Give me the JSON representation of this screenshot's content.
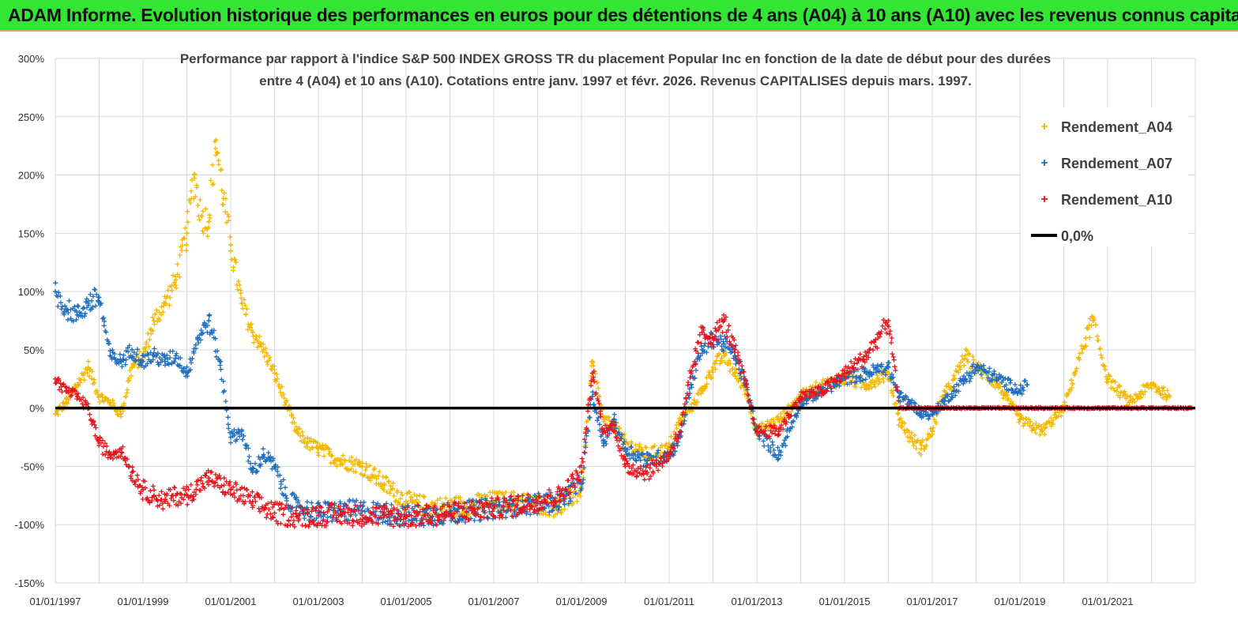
{
  "header": {
    "title": "ADAM Informe. Evolution historique des performances en euros pour des détentions de 4 ans (A04) à 10 ans (A10) avec les revenus connus capitalisés"
  },
  "chart_data": {
    "type": "scatter",
    "title_lines": [
      "Performance par rapport à l'indice S&P 500 INDEX GROSS TR  du placement Popular Inc en fonction de la date de début pour des durées",
      "entre 4 (A04) et 10 ans (A10).  Cotations entre janv. 1997 et févr. 2026. Revenus  CAPITALISES depuis mars. 1997."
    ],
    "xlabel": "",
    "ylabel": "",
    "x_range": [
      "01/01/1997",
      "31/12/2022"
    ],
    "ylim": [
      -150,
      300
    ],
    "y_ticks": [
      {
        "value": 300,
        "label": "300%"
      },
      {
        "value": 250,
        "label": "250%"
      },
      {
        "value": 200,
        "label": "200%"
      },
      {
        "value": 150,
        "label": "150%"
      },
      {
        "value": 100,
        "label": "100%"
      },
      {
        "value": 50,
        "label": "50%"
      },
      {
        "value": 0,
        "label": "0%"
      },
      {
        "value": -50,
        "label": "-50%"
      },
      {
        "value": -100,
        "label": "-100%"
      },
      {
        "value": -150,
        "label": "-150%"
      }
    ],
    "x_ticks": [
      {
        "year": 1997,
        "label": "01/01/1997"
      },
      {
        "year": 1999,
        "label": "01/01/1999"
      },
      {
        "year": 2001,
        "label": "01/01/2001"
      },
      {
        "year": 2003,
        "label": "01/01/2003"
      },
      {
        "year": 2005,
        "label": "01/01/2005"
      },
      {
        "year": 2007,
        "label": "01/01/2007"
      },
      {
        "year": 2009,
        "label": "01/01/2009"
      },
      {
        "year": 2011,
        "label": "01/01/2011"
      },
      {
        "year": 2013,
        "label": "01/01/2013"
      },
      {
        "year": 2015,
        "label": "01/01/2015"
      },
      {
        "year": 2017,
        "label": "01/01/2017"
      },
      {
        "year": 2019,
        "label": "01/01/2019"
      },
      {
        "year": 2021,
        "label": "01/01/2021"
      }
    ],
    "grid": "vertical lines at each year, horizontal lines at each 50%",
    "legend_position": "top-right",
    "legend": [
      {
        "label": "Rendement_A04",
        "marker": "plus",
        "color": "#f5b800"
      },
      {
        "label": "Rendement_A07",
        "marker": "plus",
        "color": "#1f6fc0"
      },
      {
        "label": "Rendement_A10",
        "marker": "plus",
        "color": "#e8141c"
      },
      {
        "label": "0,0%",
        "marker": "line",
        "color": "#000000"
      }
    ],
    "series": [
      {
        "name": "Rendement_A04",
        "color": "#f5b800",
        "points": [
          [
            "1997-01",
            -5
          ],
          [
            "1997-04",
            5
          ],
          [
            "1997-07",
            20
          ],
          [
            "1997-10",
            35
          ],
          [
            "1998-01",
            10
          ],
          [
            "1998-04",
            5
          ],
          [
            "1998-07",
            -5
          ],
          [
            "1998-10",
            35
          ],
          [
            "1999-01",
            45
          ],
          [
            "1999-04",
            75
          ],
          [
            "1999-07",
            90
          ],
          [
            "1999-10",
            110
          ],
          [
            "2000-01",
            150
          ],
          [
            "2000-03",
            200
          ],
          [
            "2000-05",
            165
          ],
          [
            "2000-07",
            160
          ],
          [
            "2000-09",
            230
          ],
          [
            "2000-11",
            180
          ],
          [
            "2001-01",
            140
          ],
          [
            "2001-04",
            90
          ],
          [
            "2001-07",
            65
          ],
          [
            "2001-10",
            50
          ],
          [
            "2002-01",
            30
          ],
          [
            "2002-04",
            5
          ],
          [
            "2002-07",
            -20
          ],
          [
            "2002-10",
            -30
          ],
          [
            "2003-01",
            -35
          ],
          [
            "2003-07",
            -45
          ],
          [
            "2004-01",
            -50
          ],
          [
            "2004-07",
            -65
          ],
          [
            "2005-01",
            -80
          ],
          [
            "2005-07",
            -85
          ],
          [
            "2006-01",
            -85
          ],
          [
            "2006-07",
            -83
          ],
          [
            "2007-01",
            -80
          ],
          [
            "2007-07",
            -80
          ],
          [
            "2008-01",
            -82
          ],
          [
            "2008-07",
            -85
          ],
          [
            "2009-01",
            -70
          ],
          [
            "2009-04",
            40
          ],
          [
            "2009-07",
            -10
          ],
          [
            "2009-10",
            -15
          ],
          [
            "2010-01",
            -30
          ],
          [
            "2010-07",
            -40
          ],
          [
            "2011-01",
            -35
          ],
          [
            "2011-04",
            -10
          ],
          [
            "2011-07",
            0
          ],
          [
            "2011-10",
            15
          ],
          [
            "2012-01",
            35
          ],
          [
            "2012-04",
            45
          ],
          [
            "2012-07",
            30
          ],
          [
            "2012-10",
            15
          ],
          [
            "2013-01",
            -20
          ],
          [
            "2013-07",
            -10
          ],
          [
            "2014-01",
            10
          ],
          [
            "2014-07",
            20
          ],
          [
            "2015-01",
            25
          ],
          [
            "2015-07",
            20
          ],
          [
            "2016-01",
            30
          ],
          [
            "2016-04",
            -10
          ],
          [
            "2016-07",
            -25
          ],
          [
            "2016-10",
            -35
          ],
          [
            "2017-01",
            -20
          ],
          [
            "2017-04",
            10
          ],
          [
            "2017-07",
            25
          ],
          [
            "2017-10",
            45
          ],
          [
            "2018-01",
            35
          ],
          [
            "2018-07",
            20
          ],
          [
            "2019-01",
            -10
          ],
          [
            "2019-07",
            -20
          ],
          [
            "2020-01",
            0
          ],
          [
            "2020-04",
            30
          ],
          [
            "2020-07",
            60
          ],
          [
            "2020-09",
            75
          ],
          [
            "2021-01",
            25
          ],
          [
            "2021-07",
            5
          ],
          [
            "2022-01",
            20
          ],
          [
            "2022-06",
            10
          ]
        ]
      },
      {
        "name": "Rendement_A07",
        "color": "#1f6fc0",
        "points": [
          [
            "1997-01",
            100
          ],
          [
            "1997-04",
            85
          ],
          [
            "1997-07",
            80
          ],
          [
            "1997-10",
            90
          ],
          [
            "1998-01",
            95
          ],
          [
            "1998-04",
            45
          ],
          [
            "1998-07",
            40
          ],
          [
            "1998-10",
            50
          ],
          [
            "1999-01",
            40
          ],
          [
            "1999-04",
            45
          ],
          [
            "1999-07",
            40
          ],
          [
            "1999-10",
            45
          ],
          [
            "2000-01",
            30
          ],
          [
            "2000-04",
            60
          ],
          [
            "2000-07",
            75
          ],
          [
            "2000-10",
            40
          ],
          [
            "2001-01",
            -25
          ],
          [
            "2001-04",
            -20
          ],
          [
            "2001-07",
            -55
          ],
          [
            "2001-10",
            -40
          ],
          [
            "2002-01",
            -50
          ],
          [
            "2002-04",
            -75
          ],
          [
            "2002-07",
            -85
          ],
          [
            "2003-01",
            -90
          ],
          [
            "2003-07",
            -88
          ],
          [
            "2004-01",
            -88
          ],
          [
            "2004-07",
            -90
          ],
          [
            "2005-01",
            -93
          ],
          [
            "2005-07",
            -92
          ],
          [
            "2006-01",
            -90
          ],
          [
            "2006-07",
            -88
          ],
          [
            "2007-01",
            -86
          ],
          [
            "2007-07",
            -84
          ],
          [
            "2008-01",
            -82
          ],
          [
            "2008-07",
            -80
          ],
          [
            "2009-01",
            -65
          ],
          [
            "2009-04",
            10
          ],
          [
            "2009-07",
            -30
          ],
          [
            "2009-10",
            -10
          ],
          [
            "2010-01",
            -35
          ],
          [
            "2010-07",
            -45
          ],
          [
            "2011-01",
            -40
          ],
          [
            "2011-04",
            -25
          ],
          [
            "2011-07",
            20
          ],
          [
            "2011-10",
            50
          ],
          [
            "2012-01",
            60
          ],
          [
            "2012-04",
            55
          ],
          [
            "2012-07",
            45
          ],
          [
            "2012-10",
            20
          ],
          [
            "2013-01",
            -20
          ],
          [
            "2013-07",
            -40
          ],
          [
            "2014-01",
            5
          ],
          [
            "2014-07",
            15
          ],
          [
            "2015-01",
            25
          ],
          [
            "2015-07",
            30
          ],
          [
            "2016-01",
            35
          ],
          [
            "2016-04",
            10
          ],
          [
            "2016-07",
            5
          ],
          [
            "2016-10",
            -5
          ],
          [
            "2017-01",
            -5
          ],
          [
            "2017-07",
            15
          ],
          [
            "2017-10",
            25
          ],
          [
            "2018-01",
            35
          ],
          [
            "2018-07",
            25
          ],
          [
            "2019-01",
            15
          ],
          [
            "2019-03",
            20
          ]
        ]
      },
      {
        "name": "Rendement_A10",
        "color": "#e8141c",
        "points": [
          [
            "1997-01",
            25
          ],
          [
            "1997-04",
            15
          ],
          [
            "1997-07",
            10
          ],
          [
            "1997-10",
            0
          ],
          [
            "1998-01",
            -30
          ],
          [
            "1998-04",
            -40
          ],
          [
            "1998-07",
            -35
          ],
          [
            "1998-10",
            -55
          ],
          [
            "1999-01",
            -70
          ],
          [
            "1999-04",
            -75
          ],
          [
            "1999-07",
            -80
          ],
          [
            "1999-10",
            -75
          ],
          [
            "2000-01",
            -75
          ],
          [
            "2000-07",
            -60
          ],
          [
            "2001-01",
            -70
          ],
          [
            "2001-07",
            -80
          ],
          [
            "2002-01",
            -90
          ],
          [
            "2002-07",
            -93
          ],
          [
            "2003-01",
            -92
          ],
          [
            "2003-07",
            -91
          ],
          [
            "2004-01",
            -92
          ],
          [
            "2004-07",
            -92
          ],
          [
            "2005-01",
            -93
          ],
          [
            "2005-07",
            -92
          ],
          [
            "2006-01",
            -90
          ],
          [
            "2006-07",
            -88
          ],
          [
            "2007-01",
            -86
          ],
          [
            "2007-07",
            -84
          ],
          [
            "2008-01",
            -80
          ],
          [
            "2008-07",
            -75
          ],
          [
            "2009-01",
            -55
          ],
          [
            "2009-04",
            30
          ],
          [
            "2009-07",
            -20
          ],
          [
            "2009-10",
            -15
          ],
          [
            "2010-01",
            -50
          ],
          [
            "2010-07",
            -55
          ],
          [
            "2011-01",
            -40
          ],
          [
            "2011-04",
            -20
          ],
          [
            "2011-07",
            30
          ],
          [
            "2011-10",
            65
          ],
          [
            "2012-01",
            60
          ],
          [
            "2012-04",
            75
          ],
          [
            "2012-07",
            50
          ],
          [
            "2012-10",
            20
          ],
          [
            "2013-01",
            -20
          ],
          [
            "2013-07",
            -20
          ],
          [
            "2014-01",
            10
          ],
          [
            "2014-07",
            15
          ],
          [
            "2015-01",
            30
          ],
          [
            "2015-07",
            45
          ],
          [
            "2016-01",
            75
          ],
          [
            "2016-04",
            0
          ],
          [
            "2017-01",
            0
          ],
          [
            "2018-01",
            0
          ],
          [
            "2019-01",
            0
          ],
          [
            "2020-01",
            0
          ],
          [
            "2021-01",
            0
          ],
          [
            "2022-01",
            0
          ],
          [
            "2022-12",
            0
          ]
        ]
      }
    ],
    "reference_line": {
      "name": "0,0%",
      "value": 0,
      "color": "#000000"
    }
  }
}
